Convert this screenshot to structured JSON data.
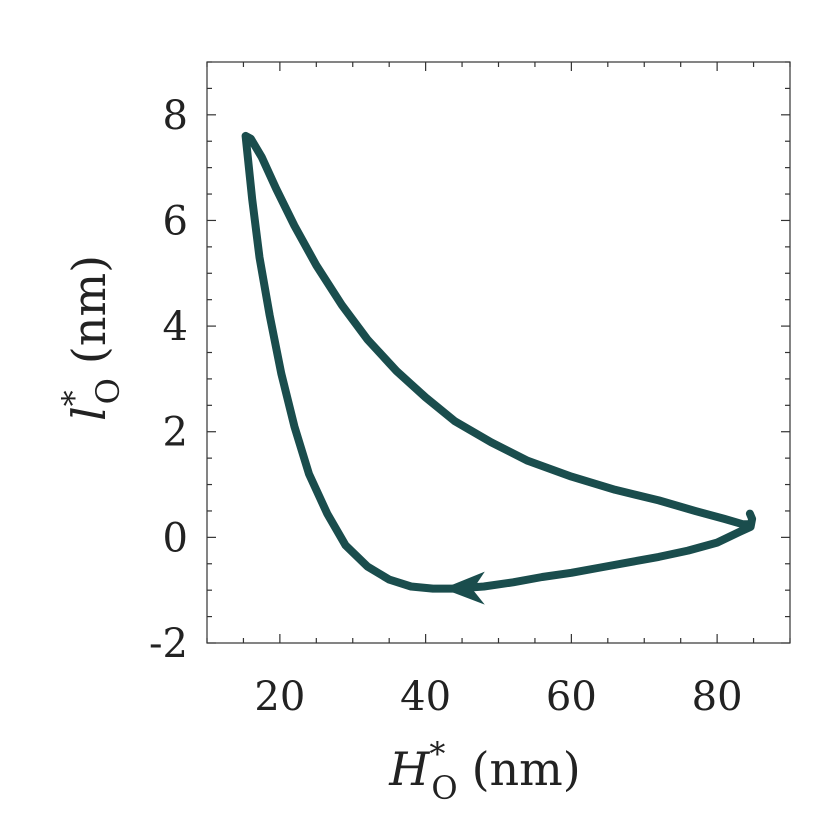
{
  "chart_data": {
    "type": "line",
    "title": "",
    "xlabel": {
      "main": "H",
      "sup": "*",
      "sub": "O",
      "unit": "(nm)"
    },
    "ylabel": {
      "main": "l",
      "sup": "*",
      "sub": "O",
      "unit": "(nm)"
    },
    "xlim": [
      10,
      90
    ],
    "ylim": [
      -2,
      9
    ],
    "xticks": [
      20,
      40,
      60,
      80
    ],
    "xtick_labels": [
      "20",
      "40",
      "60",
      "80"
    ],
    "yticks": [
      -2,
      0,
      2,
      4,
      6,
      8
    ],
    "ytick_labels": [
      "-2",
      "0",
      "2",
      "4",
      "6",
      "8"
    ],
    "grid": false,
    "legend": "none",
    "series": [
      {
        "color": "#1a4d4d",
        "x": [
          84.6,
          83.5,
          81.0,
          77.0,
          72.0,
          66.0,
          60.0,
          54.0,
          49.0,
          44.0,
          40.0,
          36.0,
          32.0,
          28.5,
          25.0,
          22.0,
          19.5,
          17.5,
          16.0,
          15.3,
          15.6,
          16.2,
          17.2,
          18.6,
          20.2,
          22.0,
          24.0,
          26.5,
          29.0,
          32.0,
          35.0,
          38.0,
          41.0,
          44.0,
          48.0,
          52.0,
          56.0,
          60.0,
          64.0,
          68.0,
          72.0,
          76.0,
          80.0,
          83.0,
          84.6,
          84.8,
          84.5
        ],
        "y": [
          0.25,
          0.25,
          0.35,
          0.5,
          0.7,
          0.9,
          1.15,
          1.45,
          1.8,
          2.2,
          2.65,
          3.15,
          3.75,
          4.4,
          5.15,
          5.9,
          6.6,
          7.2,
          7.55,
          7.6,
          7.2,
          6.4,
          5.3,
          4.2,
          3.1,
          2.1,
          1.2,
          0.45,
          -0.15,
          -0.55,
          -0.8,
          -0.93,
          -0.97,
          -0.97,
          -0.93,
          -0.85,
          -0.75,
          -0.67,
          -0.57,
          -0.47,
          -0.37,
          -0.25,
          -0.1,
          0.1,
          0.2,
          0.35,
          0.45
        ]
      }
    ],
    "arrow": {
      "x": 44,
      "y": -0.97,
      "direction": "left"
    }
  }
}
